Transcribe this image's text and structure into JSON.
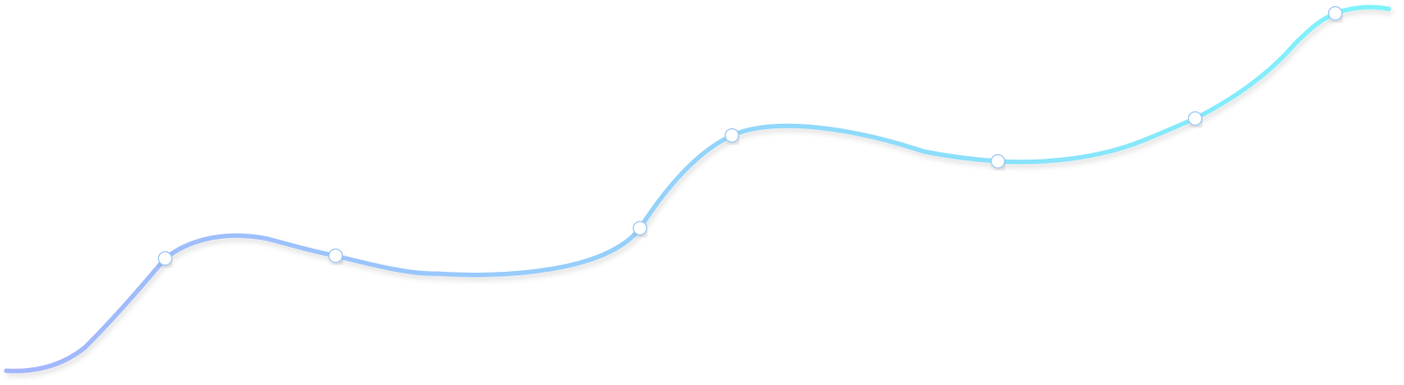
{
  "colors": {
    "gradient_start": "#a3b5fd",
    "gradient_mid": "#93d4fb",
    "gradient_end": "#7ef4fb",
    "marker_fill": "#ffffff",
    "marker_stroke": "#9cc8f7",
    "background": "#ffffff"
  },
  "markers": 7
}
